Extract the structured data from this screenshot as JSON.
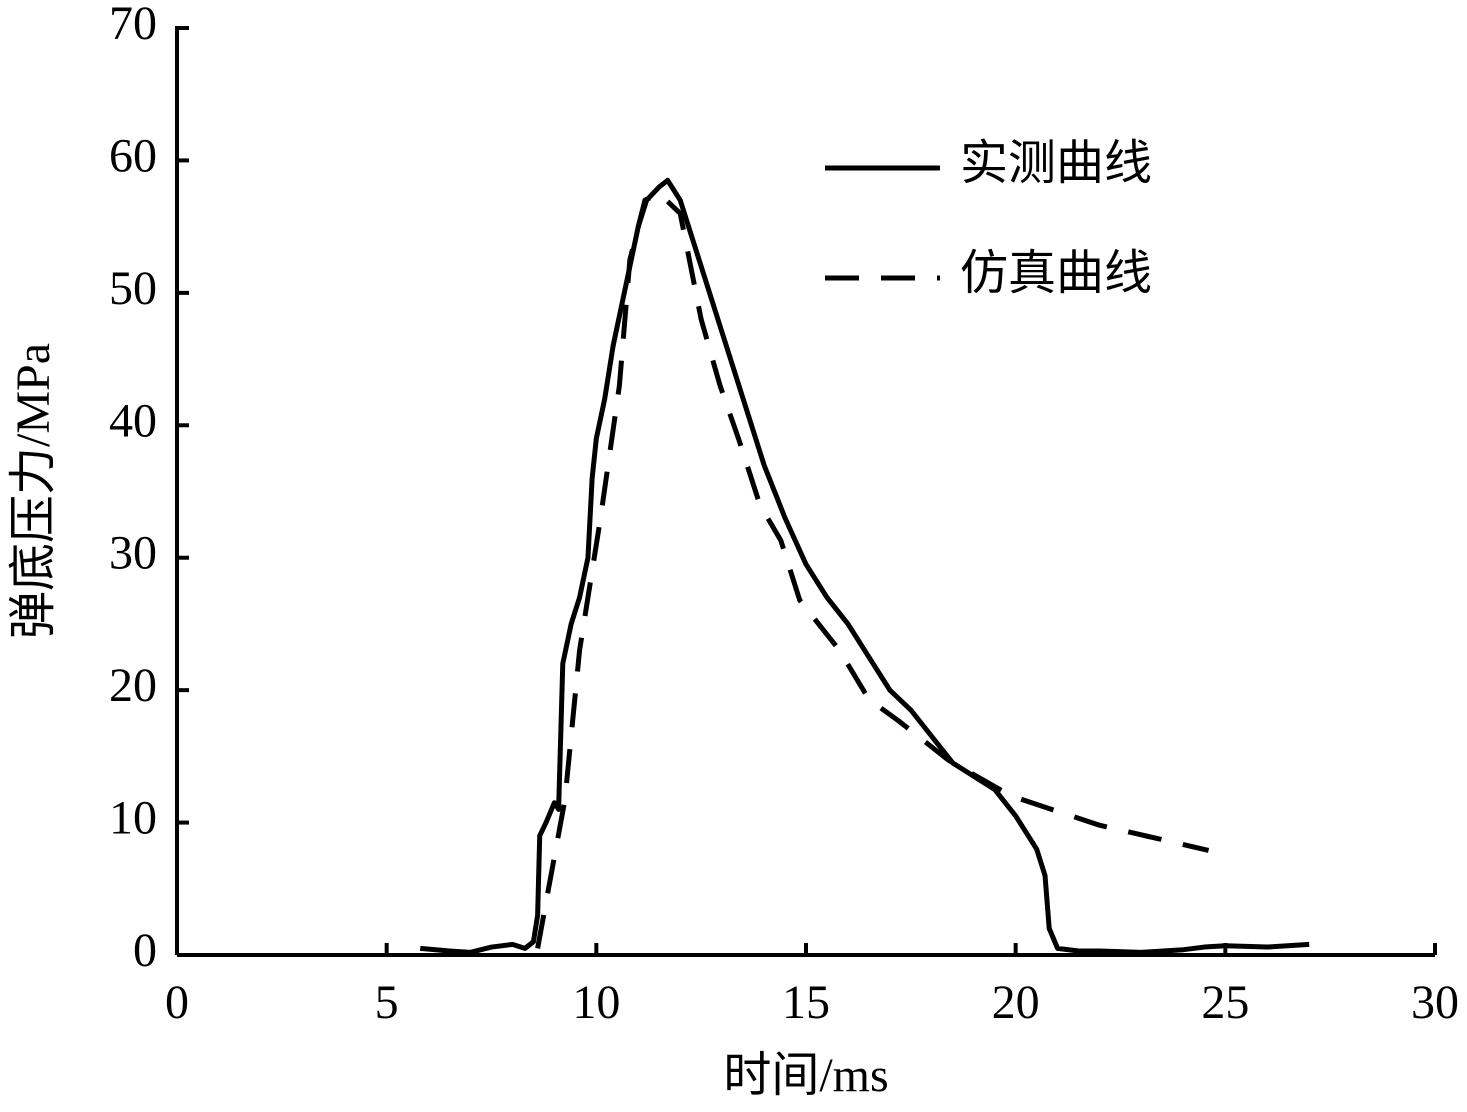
{
  "chart_data": {
    "type": "line",
    "x_label": "时间/ms",
    "y_label": "弹底压力/MPa",
    "xlim": [
      0,
      30
    ],
    "xticks": [
      0,
      5,
      10,
      15,
      20,
      25,
      30
    ],
    "ylim": [
      0,
      70
    ],
    "yticks": [
      0,
      10,
      20,
      30,
      40,
      50,
      60,
      70
    ],
    "legend": "upper right",
    "series": [
      {
        "name": "实测曲线",
        "color": "#000000",
        "dash": "solid",
        "x": [
          5.8,
          6.5,
          7,
          7.5,
          8,
          8.3,
          8.5,
          8.6,
          8.65,
          8.8,
          9,
          9.1,
          9.2,
          9.4,
          9.6,
          9.8,
          9.9,
          10,
          10.2,
          10.4,
          10.6,
          10.8,
          11,
          11.2,
          11.5,
          11.7,
          12,
          12.3,
          12.7,
          13,
          13.5,
          14,
          14.5,
          15,
          15.5,
          16,
          16.5,
          17,
          17.5,
          18,
          18.5,
          19,
          19.5,
          20,
          20.5,
          20.7,
          20.8,
          21,
          21.5,
          22,
          23,
          24,
          24.5,
          25,
          26,
          27
        ],
        "values": [
          0.5,
          0.3,
          0.2,
          0.6,
          0.8,
          0.5,
          1,
          3,
          9,
          10,
          11.5,
          11,
          22,
          25,
          27,
          30,
          36,
          39,
          42,
          46,
          49,
          52,
          55,
          57,
          58,
          58.5,
          57,
          54,
          50,
          47,
          42,
          37,
          33,
          29.5,
          27,
          25,
          22.5,
          20,
          18.5,
          16.5,
          14.5,
          13.5,
          12.5,
          10.5,
          8,
          6,
          2,
          0.5,
          0.3,
          0.3,
          0.2,
          0.4,
          0.6,
          0.7,
          0.6,
          0.8
        ]
      },
      {
        "name": "仿真曲线",
        "color": "#000000",
        "dash": "dashed",
        "x": [
          8.6,
          8.9,
          9.25,
          9.6,
          10.1,
          10.55,
          10.8,
          11.16,
          11.5,
          12,
          12.5,
          12.95,
          13.4,
          13.9,
          14.4,
          14.85,
          15.8,
          16.5,
          17.2,
          18.4,
          19.9,
          22,
          24.6
        ],
        "values": [
          0.5,
          5.7,
          11.7,
          23,
          33,
          43,
          52.5,
          57,
          57.5,
          56,
          48,
          43,
          38.9,
          34,
          31.3,
          26.8,
          23,
          19.3,
          17.7,
          14.7,
          12,
          9.8,
          7.9
        ]
      }
    ]
  }
}
